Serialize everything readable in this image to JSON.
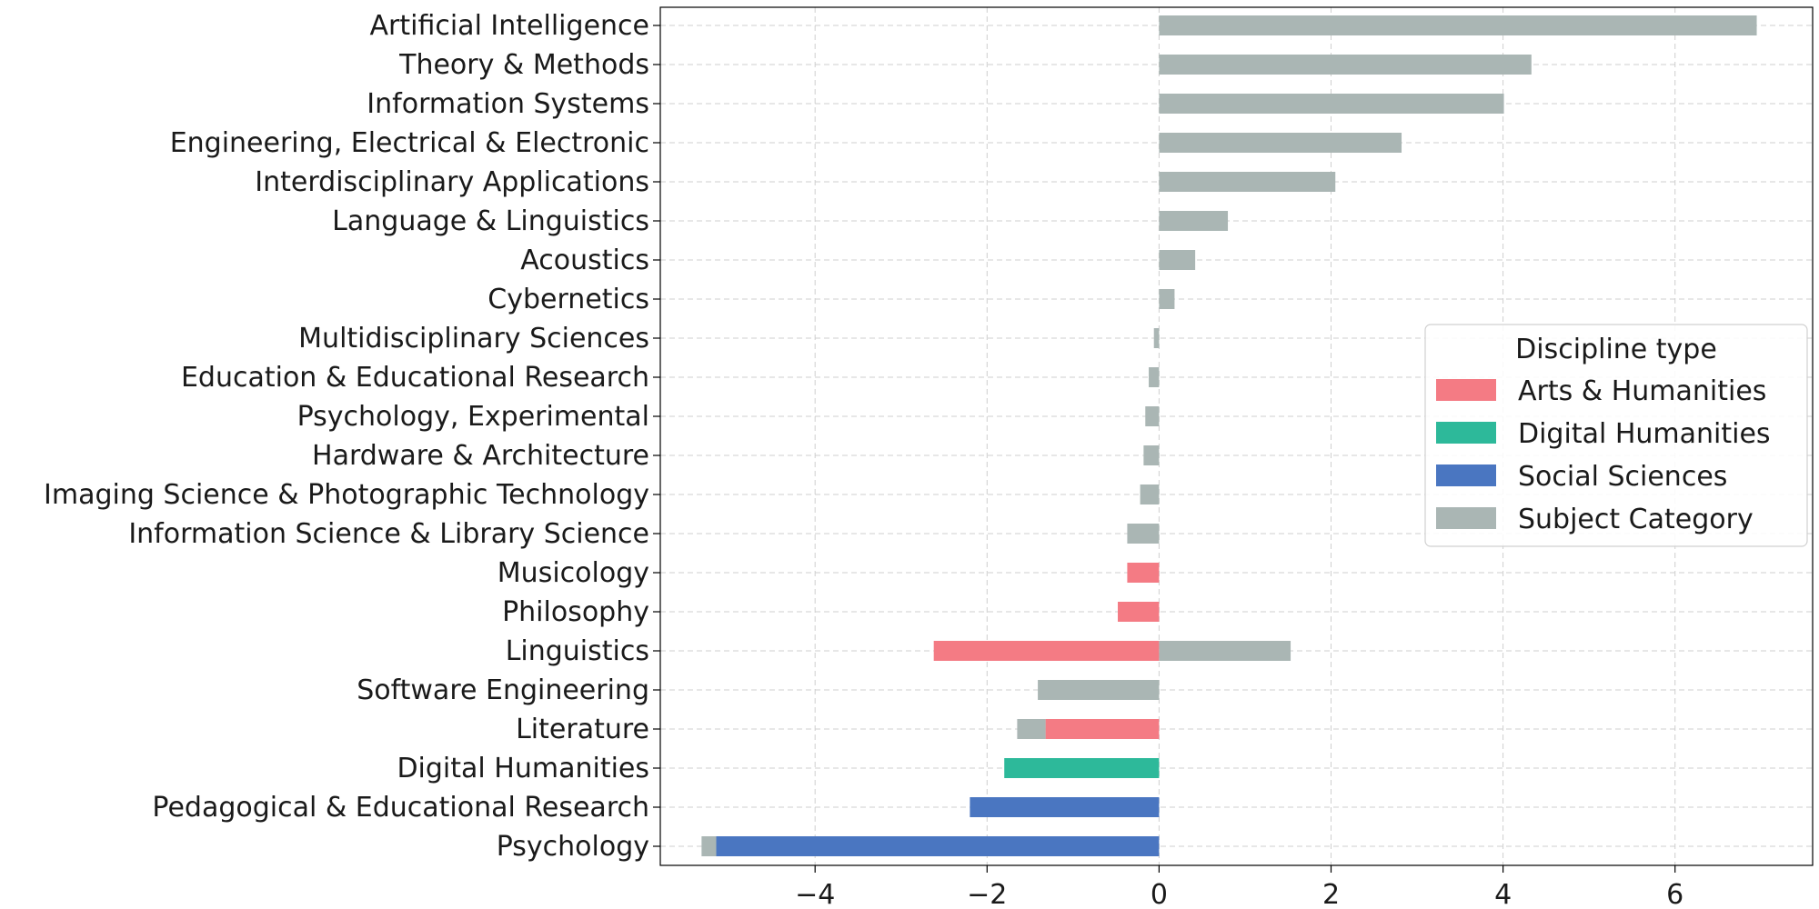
{
  "chart_data": {
    "type": "bar",
    "orientation": "horizontal",
    "stacked": true,
    "categories": [
      "Artificial Intelligence",
      "Theory & Methods",
      "Information Systems",
      "Engineering, Electrical & Electronic",
      "Interdisciplinary Applications",
      "Language & Linguistics",
      "Acoustics",
      "Cybernetics",
      "Multidisciplinary Sciences",
      "Education & Educational Research",
      "Psychology, Experimental",
      "Hardware & Architecture",
      "Imaging Science & Photographic Technology",
      "Information Science & Library Science",
      "Musicology",
      "Philosophy",
      "Linguistics",
      "Software Engineering",
      "Literature",
      "Digital Humanities",
      "Pedagogical & Educational Research",
      "Psychology"
    ],
    "series": [
      {
        "name": "Arts & Humanities",
        "color": "#f47b84",
        "values": [
          0,
          0,
          0,
          0,
          0,
          0,
          0,
          0,
          0,
          0,
          0,
          0,
          0,
          0,
          -0.37,
          -0.48,
          -2.62,
          0,
          -1.32,
          0,
          0,
          0
        ]
      },
      {
        "name": "Digital Humanities",
        "color": "#2db99a",
        "values": [
          0,
          0,
          0,
          0,
          0,
          0,
          0,
          0,
          0,
          0,
          0,
          0,
          0,
          0,
          0,
          0,
          0,
          0,
          0,
          -1.8,
          0,
          0
        ]
      },
      {
        "name": "Social Sciences",
        "color": "#4a76c1",
        "values": [
          0,
          0,
          0,
          0,
          0,
          0,
          0,
          0,
          0,
          0,
          0,
          0,
          0,
          0,
          0,
          0,
          0,
          0,
          0,
          0,
          -2.2,
          -5.15
        ]
      },
      {
        "name": "Subject Category",
        "color": "#aab6b4",
        "values": [
          6.95,
          4.33,
          4.01,
          2.82,
          2.05,
          0.8,
          0.42,
          0.18,
          -0.06,
          -0.12,
          -0.16,
          -0.18,
          -0.22,
          -0.37,
          0,
          0,
          1.53,
          -1.41,
          -0.33,
          0,
          0,
          -0.17
        ]
      }
    ],
    "xlim": [
      -5.8,
      7.6
    ],
    "xticks": [
      -4,
      -2,
      0,
      2,
      4,
      6
    ],
    "xtick_labels": [
      "−4",
      "−2",
      "0",
      "2",
      "4",
      "6"
    ],
    "grid": true,
    "legend": {
      "title": "Discipline type",
      "placement": "center-right",
      "entries": [
        "Arts & Humanities",
        "Digital Humanities",
        "Social Sciences",
        "Subject Category"
      ]
    }
  }
}
